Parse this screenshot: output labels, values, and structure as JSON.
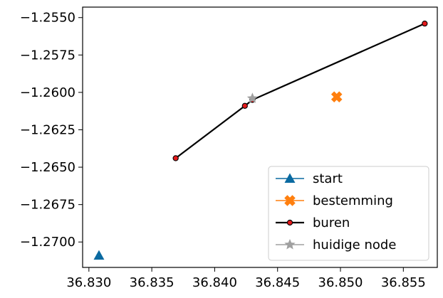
{
  "chart_data": {
    "type": "scatter",
    "title": "",
    "xlabel": "",
    "ylabel": "",
    "xlim": [
      36.8295,
      36.8577
    ],
    "ylim": [
      -1.2717,
      -1.2543
    ],
    "xticks": [
      36.83,
      36.835,
      36.84,
      36.845,
      36.85,
      36.855
    ],
    "xtick_labels": [
      "36.830",
      "36.835",
      "36.840",
      "36.845",
      "36.850",
      "36.855"
    ],
    "yticks": [
      -1.255,
      -1.2575,
      -1.26,
      -1.2625,
      -1.265,
      -1.2675,
      -1.27
    ],
    "ytick_labels": [
      "−1.2550",
      "−1.2575",
      "−1.2600",
      "−1.2625",
      "−1.2650",
      "−1.2675",
      "−1.2700"
    ],
    "grid": false,
    "legend_position": "bottom-right",
    "series": [
      {
        "name": "start",
        "color": "#0a6aa1",
        "marker": "triangle",
        "line": false,
        "points": [
          {
            "x": 36.8308,
            "y": -1.2709
          }
        ]
      },
      {
        "name": "bestemming",
        "color": "#ff7f0e",
        "marker": "x-filled",
        "line": false,
        "points": [
          {
            "x": 36.8497,
            "y": -1.2603
          }
        ]
      },
      {
        "name": "buren",
        "color": "#000000",
        "marker_face": "#e41a1c",
        "marker": "circle",
        "line": true,
        "points": [
          {
            "x": 36.8369,
            "y": -1.2644
          },
          {
            "x": 36.8424,
            "y": -1.2609
          },
          {
            "x": 36.843,
            "y": -1.2605
          },
          {
            "x": 36.8567,
            "y": -1.2554
          }
        ]
      },
      {
        "name": "huidige node",
        "color": "#a0a0a0",
        "marker": "star",
        "line": false,
        "points": [
          {
            "x": 36.843,
            "y": -1.2604
          }
        ]
      }
    ]
  }
}
